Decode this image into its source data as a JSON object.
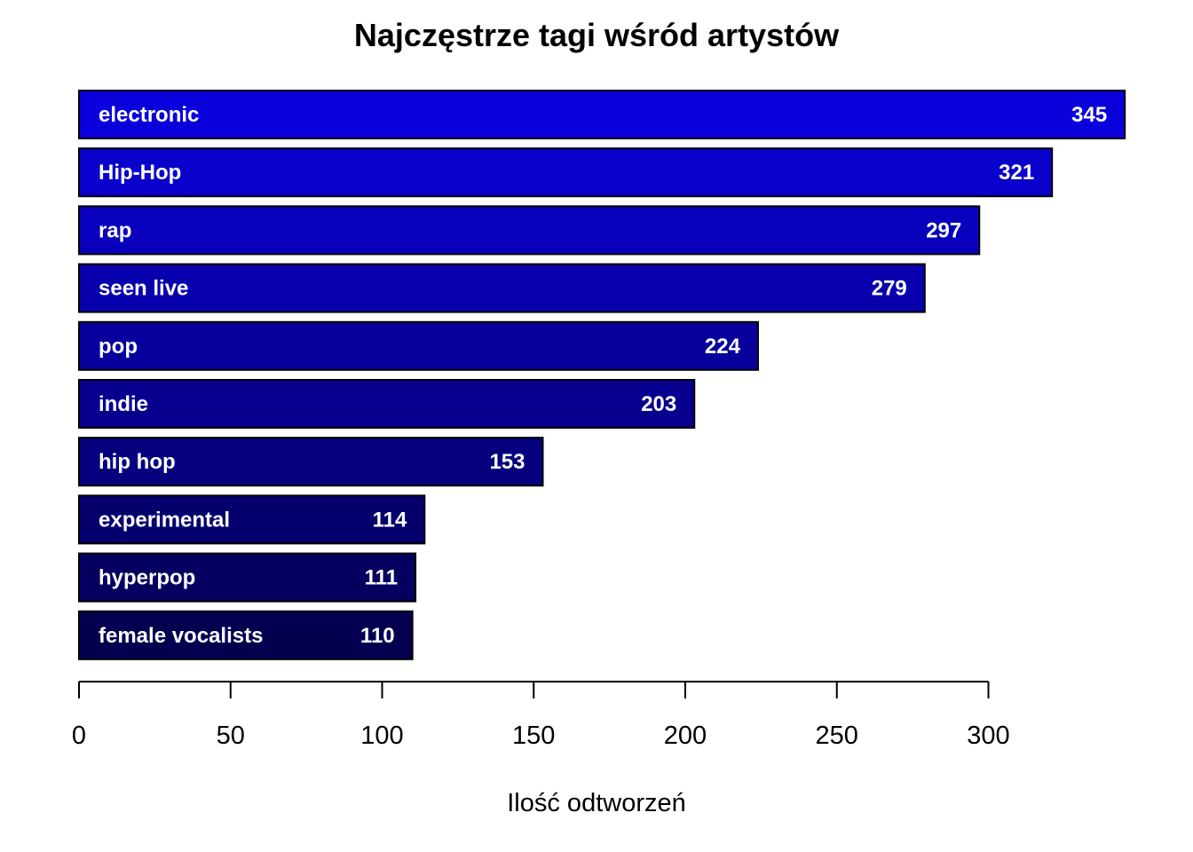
{
  "chart_data": {
    "type": "bar",
    "orientation": "horizontal",
    "title": "Najczęstrze tagi wśród artystów",
    "xlabel": "Ilość odtworzeń",
    "ylabel": "",
    "categories": [
      "electronic",
      "Hip-Hop",
      "rap",
      "seen live",
      "pop",
      "indie",
      "hip hop",
      "experimental",
      "hyperpop",
      "female vocalists"
    ],
    "values": [
      345,
      321,
      297,
      279,
      224,
      203,
      153,
      114,
      111,
      110
    ],
    "xlim": [
      0,
      345
    ],
    "xticks": [
      "0",
      "50",
      "100",
      "150",
      "200",
      "250",
      "300"
    ],
    "bar_color_start": "#0a00dc",
    "bar_color_end": "#04004f",
    "grid": false
  }
}
